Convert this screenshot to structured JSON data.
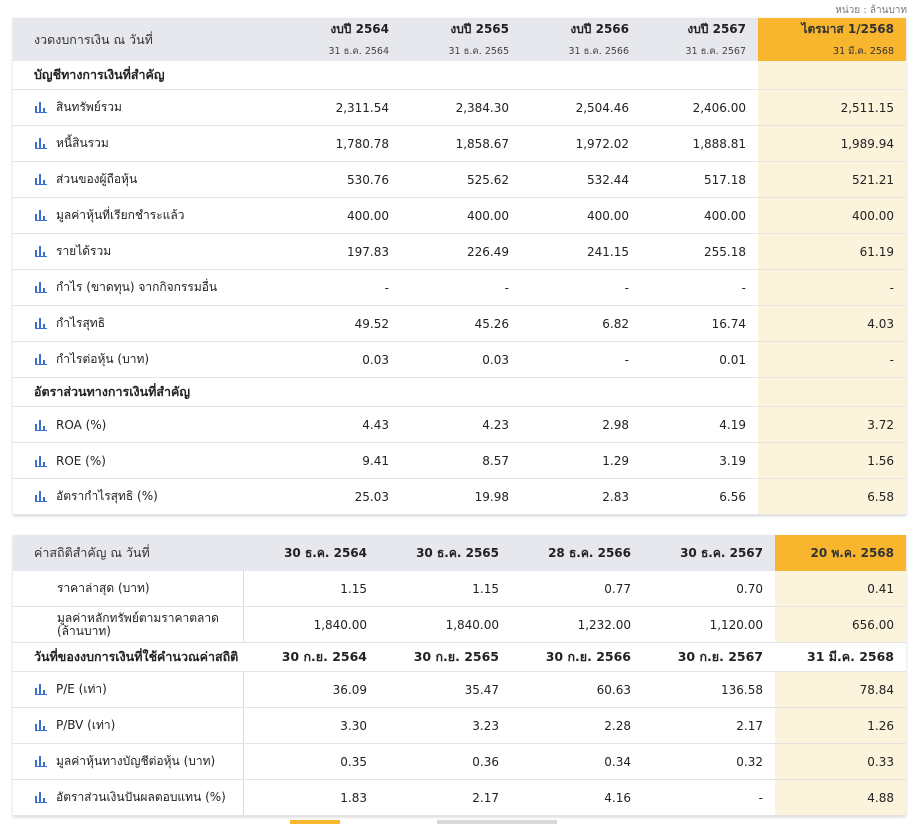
{
  "unit": "หน่วย : ล้านบาท",
  "financials": {
    "header_label": "งวดงบการเงิน ณ วันที่",
    "periods": [
      {
        "year": "งบปี 2564",
        "date": "31 ธ.ค. 2564"
      },
      {
        "year": "งบปี 2565",
        "date": "31 ธ.ค. 2565"
      },
      {
        "year": "งบปี 2566",
        "date": "31 ธ.ค. 2566"
      },
      {
        "year": "งบปี 2567",
        "date": "31 ธ.ค. 2567"
      },
      {
        "year": "ไตรมาส 1/2568",
        "date": "31 มี.ค. 2568"
      }
    ],
    "section1": "บัญชีทางการเงินที่สำคัญ",
    "rows1": [
      {
        "name": "สินทรัพย์รวม",
        "values": [
          "2,311.54",
          "2,384.30",
          "2,504.46",
          "2,406.00",
          "2,511.15"
        ]
      },
      {
        "name": "หนี้สินรวม",
        "values": [
          "1,780.78",
          "1,858.67",
          "1,972.02",
          "1,888.81",
          "1,989.94"
        ]
      },
      {
        "name": "ส่วนของผู้ถือหุ้น",
        "values": [
          "530.76",
          "525.62",
          "532.44",
          "517.18",
          "521.21"
        ]
      },
      {
        "name": "มูลค่าหุ้นที่เรียกชำระแล้ว",
        "values": [
          "400.00",
          "400.00",
          "400.00",
          "400.00",
          "400.00"
        ]
      },
      {
        "name": "รายได้รวม",
        "values": [
          "197.83",
          "226.49",
          "241.15",
          "255.18",
          "61.19"
        ]
      },
      {
        "name": "กำไร (ขาดทุน) จากกิจกรรมอื่น",
        "values": [
          "-",
          "-",
          "-",
          "-",
          "-"
        ]
      },
      {
        "name": "กำไรสุทธิ",
        "values": [
          "49.52",
          "45.26",
          "6.82",
          "16.74",
          "4.03"
        ]
      },
      {
        "name": "กำไรต่อหุ้น (บาท)",
        "values": [
          "0.03",
          "0.03",
          "-",
          "0.01",
          "-"
        ]
      }
    ],
    "section2": "อัตราส่วนทางการเงินที่สำคัญ",
    "rows2": [
      {
        "name": "ROA (%)",
        "values": [
          "4.43",
          "4.23",
          "2.98",
          "4.19",
          "3.72"
        ]
      },
      {
        "name": "ROE (%)",
        "values": [
          "9.41",
          "8.57",
          "1.29",
          "3.19",
          "1.56"
        ]
      },
      {
        "name": "อัตรากำไรสุทธิ (%)",
        "values": [
          "25.03",
          "19.98",
          "2.83",
          "6.56",
          "6.58"
        ]
      }
    ]
  },
  "statistics": {
    "header_label": "ค่าสถิติสำคัญ ณ วันที่",
    "dates": [
      "30 ธ.ค. 2564",
      "30 ธ.ค. 2565",
      "28 ธ.ค. 2566",
      "30 ธ.ค. 2567",
      "20 พ.ค. 2568"
    ],
    "rows1": [
      {
        "name": "ราคาล่าสุด (บาท)",
        "values": [
          "1.15",
          "1.15",
          "0.77",
          "0.70",
          "0.41"
        ]
      },
      {
        "name": "มูลค่าหลักทรัพย์ตามราคาตลาด (ล้านบาท)",
        "values": [
          "1,840.00",
          "1,840.00",
          "1,232.00",
          "1,120.00",
          "656.00"
        ]
      }
    ],
    "section": "วันที่ของงบการเงินที่ใช้คำนวณค่าสถิติ",
    "section_dates": [
      "30 ก.ย. 2564",
      "30 ก.ย. 2565",
      "30 ก.ย. 2566",
      "30 ก.ย. 2567",
      "31 มี.ค. 2568"
    ],
    "rows2": [
      {
        "name": "P/E (เท่า)",
        "values": [
          "36.09",
          "35.47",
          "60.63",
          "136.58",
          "78.84"
        ]
      },
      {
        "name": "P/BV (เท่า)",
        "values": [
          "3.30",
          "3.23",
          "2.28",
          "2.17",
          "1.26"
        ]
      },
      {
        "name": "มูลค่าหุ้นทางบัญชีต่อหุ้น (บาท)",
        "values": [
          "0.35",
          "0.36",
          "0.34",
          "0.32",
          "0.33"
        ]
      },
      {
        "name": "อัตราส่วนเงินปันผลตอบแทน (%)",
        "values": [
          "1.83",
          "2.17",
          "4.16",
          "-",
          "4.88"
        ]
      }
    ]
  },
  "colors": {
    "accent": "#f8b52e",
    "highlight": "#fcf3dc",
    "icon": "#3b6fd4",
    "header": "#e6e8ed"
  },
  "icon_name": "bar-chart-icon"
}
